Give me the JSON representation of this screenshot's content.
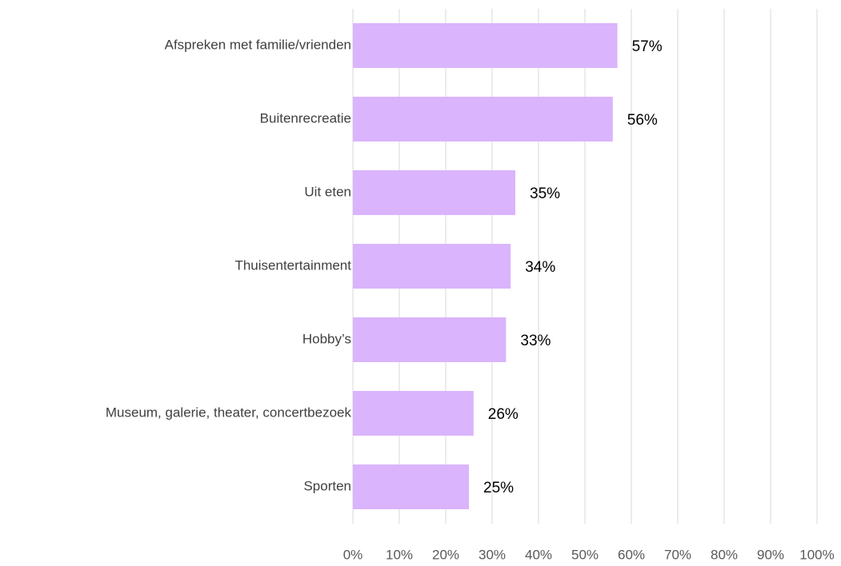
{
  "chart_data": {
    "type": "bar",
    "orientation": "horizontal",
    "categories": [
      "Afspreken met familie/vrienden",
      "Buitenrecreatie",
      "Uit eten",
      "Thuisentertainment",
      "Hobby’s",
      "Museum, galerie, theater, concertbezoek",
      "Sporten"
    ],
    "values": [
      57,
      56,
      35,
      34,
      33,
      26,
      25
    ],
    "value_labels": [
      "57%",
      "56%",
      "35%",
      "34%",
      "33%",
      "26%",
      "25%"
    ],
    "color": "#dab4fc",
    "xlim": [
      0,
      100
    ],
    "xticks": [
      {
        "value": 0,
        "label": "0%"
      },
      {
        "value": 10,
        "label": "10%"
      },
      {
        "value": 20,
        "label": "20%"
      },
      {
        "value": 30,
        "label": "30%"
      },
      {
        "value": 40,
        "label": "40%"
      },
      {
        "value": 50,
        "label": "50%"
      },
      {
        "value": 60,
        "label": "60%"
      },
      {
        "value": 70,
        "label": "70%"
      },
      {
        "value": 80,
        "label": "80%"
      },
      {
        "value": 90,
        "label": "90%"
      },
      {
        "value": 100,
        "label": "100%"
      }
    ],
    "grid": true
  }
}
